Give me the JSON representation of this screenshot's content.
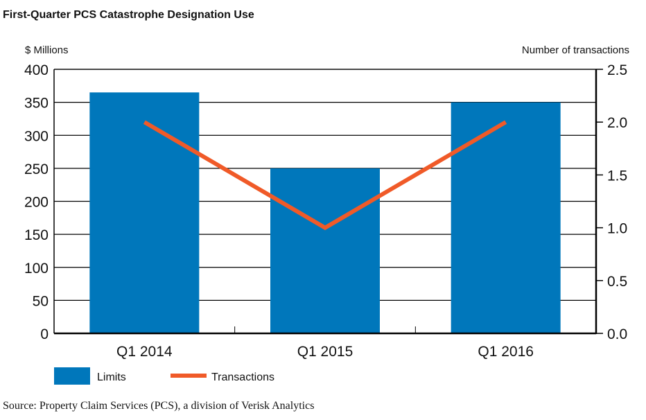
{
  "chart_data": {
    "type": "bar",
    "title": "First-Quarter PCS Catastrophe Designation Use",
    "ylabel": "$ Millions",
    "y2label": "Number of transactions",
    "categories": [
      "Q1 2014",
      "Q1 2015",
      "Q1 2016"
    ],
    "ylim": [
      0,
      400
    ],
    "yticks": [
      "0",
      "50",
      "100",
      "150",
      "200",
      "250",
      "300",
      "350",
      "400"
    ],
    "y2lim": [
      0,
      2.5
    ],
    "y2ticks": [
      "0.0",
      "0.5",
      "1.0",
      "1.5",
      "2.0",
      "2.5"
    ],
    "grid": true,
    "legend_placement": "bottom-left",
    "series": [
      {
        "name": "Limits",
        "type": "bar",
        "axis": "left",
        "color": "#0077BB",
        "values": [
          365,
          250,
          350
        ]
      },
      {
        "name": "Transactions",
        "type": "line",
        "axis": "right",
        "color": "#F05A28",
        "values": [
          2.0,
          1.0,
          2.0
        ]
      }
    ],
    "source": "Source: Property Claim Services (PCS), a division of Verisk Analytics"
  }
}
